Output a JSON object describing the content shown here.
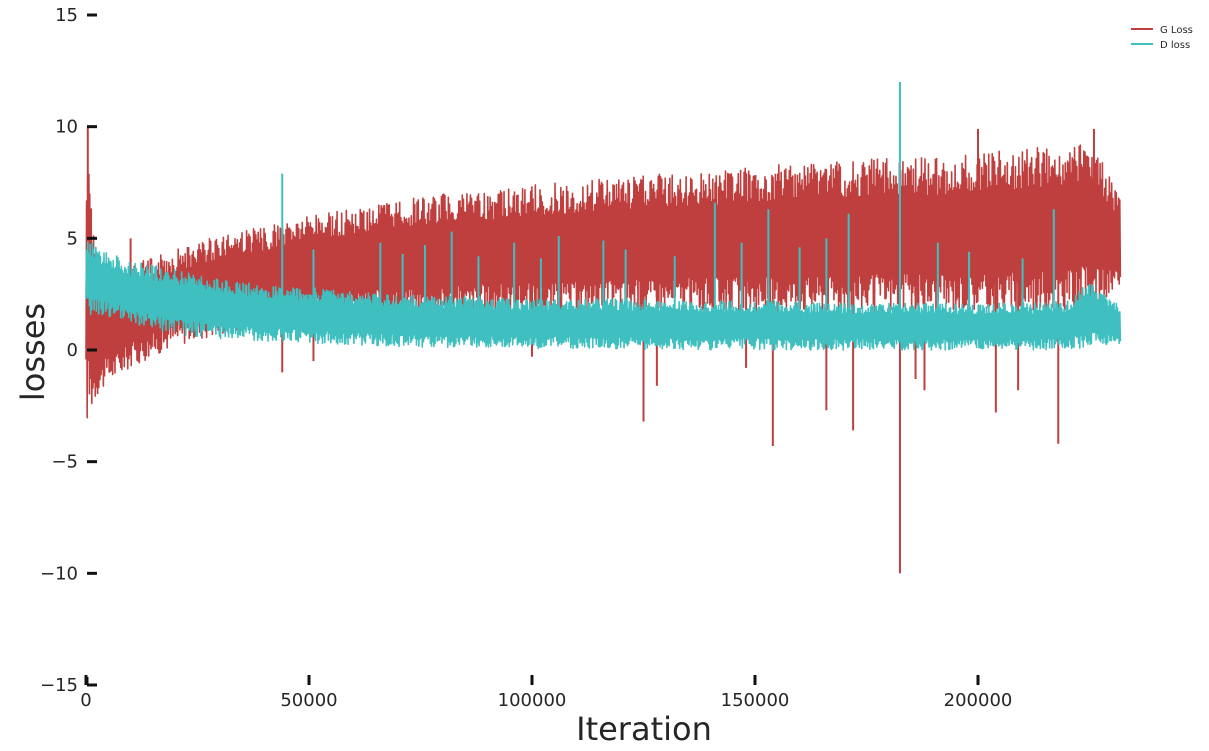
{
  "chart_data": {
    "type": "line",
    "title": "",
    "xlabel": "Iteration",
    "ylabel": "losses",
    "xlim": [
      0,
      240000
    ],
    "ylim": [
      -15,
      15
    ],
    "x_ticks": [
      0,
      50000,
      100000,
      150000,
      200000
    ],
    "y_ticks": [
      15,
      10,
      5,
      0,
      -5,
      -10,
      -15
    ],
    "x_tick_labels": [
      "0",
      "50000",
      "100000",
      "150000",
      "200000"
    ],
    "y_tick_labels": [
      "15",
      "10",
      "5",
      "0",
      "−5",
      "−10",
      "−15"
    ],
    "grid": false,
    "legend_position": "top-right",
    "series": [
      {
        "name": "G Loss",
        "color": "#bf3f3f",
        "x": [
          0,
          2500,
          5000,
          10000,
          20000,
          30000,
          40000,
          50000,
          60000,
          70000,
          80000,
          90000,
          100000,
          110000,
          120000,
          130000,
          140000,
          150000,
          160000,
          170000,
          180000,
          190000,
          200000,
          210000,
          220000,
          225000,
          232000
        ],
        "upper": [
          10,
          3.3,
          3.5,
          3.8,
          4.5,
          5.2,
          5.5,
          6.0,
          6.4,
          6.7,
          7.0,
          7.2,
          7.4,
          7.6,
          7.7,
          7.9,
          8.0,
          8.2,
          8.4,
          8.5,
          8.6,
          8.6,
          8.8,
          9.0,
          9.2,
          9.4,
          7.0
        ],
        "lower": [
          -3.4,
          -2.0,
          -1.5,
          -0.8,
          0.2,
          0.7,
          1.0,
          1.2,
          1.4,
          1.5,
          1.5,
          1.6,
          1.6,
          1.6,
          1.7,
          1.7,
          1.7,
          1.7,
          1.7,
          1.7,
          1.7,
          1.7,
          1.7,
          1.7,
          1.8,
          2.0,
          2.4
        ],
        "spikes": [
          {
            "x": 400,
            "y": 10.0
          },
          {
            "x": 800,
            "y": 7.0
          },
          {
            "x": 10000,
            "y": 5.0
          },
          {
            "x": 44000,
            "y": -1.0
          },
          {
            "x": 51000,
            "y": -0.5
          },
          {
            "x": 100000,
            "y": -0.3
          },
          {
            "x": 125000,
            "y": -3.2
          },
          {
            "x": 128000,
            "y": -1.6
          },
          {
            "x": 148000,
            "y": -0.8
          },
          {
            "x": 154000,
            "y": -4.3
          },
          {
            "x": 166000,
            "y": -2.7
          },
          {
            "x": 172000,
            "y": -3.6
          },
          {
            "x": 182500,
            "y": -10.0
          },
          {
            "x": 186000,
            "y": -1.3
          },
          {
            "x": 188000,
            "y": -1.8
          },
          {
            "x": 200000,
            "y": 9.9
          },
          {
            "x": 204000,
            "y": -2.8
          },
          {
            "x": 209000,
            "y": -1.8
          },
          {
            "x": 218000,
            "y": -4.2
          },
          {
            "x": 226000,
            "y": 9.9
          }
        ]
      },
      {
        "name": "D loss",
        "color": "#3fbfbf",
        "x": [
          0,
          2500,
          5000,
          10000,
          20000,
          30000,
          40000,
          50000,
          60000,
          70000,
          80000,
          90000,
          100000,
          110000,
          120000,
          130000,
          140000,
          150000,
          160000,
          170000,
          180000,
          190000,
          200000,
          210000,
          220000,
          225000,
          232000
        ],
        "upper": [
          5.2,
          4.6,
          4.4,
          4.0,
          3.6,
          3.2,
          2.9,
          2.8,
          2.6,
          2.5,
          2.4,
          2.4,
          2.3,
          2.3,
          2.3,
          2.2,
          2.2,
          2.2,
          2.2,
          2.1,
          2.1,
          2.1,
          2.1,
          2.1,
          2.2,
          3.2,
          2.0
        ],
        "lower": [
          1.5,
          1.6,
          1.5,
          1.1,
          0.7,
          0.5,
          0.4,
          0.3,
          0.2,
          0.15,
          0.1,
          0.1,
          0.05,
          0.05,
          0.05,
          0.02,
          0.0,
          0.0,
          0.0,
          0.0,
          0.0,
          0.0,
          0.0,
          0.0,
          0.05,
          0.1,
          0.3
        ],
        "spikes": [
          {
            "x": 44000,
            "y": 7.9
          },
          {
            "x": 51000,
            "y": 4.5
          },
          {
            "x": 66000,
            "y": 4.8
          },
          {
            "x": 71000,
            "y": 4.3
          },
          {
            "x": 76000,
            "y": 4.7
          },
          {
            "x": 82000,
            "y": 5.3
          },
          {
            "x": 88000,
            "y": 4.2
          },
          {
            "x": 96000,
            "y": 4.8
          },
          {
            "x": 102000,
            "y": 4.1
          },
          {
            "x": 106000,
            "y": 5.1
          },
          {
            "x": 116000,
            "y": 4.9
          },
          {
            "x": 121000,
            "y": 4.5
          },
          {
            "x": 132000,
            "y": 4.2
          },
          {
            "x": 141000,
            "y": 6.6
          },
          {
            "x": 147000,
            "y": 4.8
          },
          {
            "x": 153000,
            "y": 6.3
          },
          {
            "x": 160000,
            "y": 4.6
          },
          {
            "x": 166000,
            "y": 5.0
          },
          {
            "x": 171000,
            "y": 6.1
          },
          {
            "x": 182500,
            "y": 12.0
          },
          {
            "x": 191000,
            "y": 4.8
          },
          {
            "x": 198000,
            "y": 4.4
          },
          {
            "x": 210000,
            "y": 4.1
          },
          {
            "x": 217000,
            "y": 6.3
          }
        ]
      }
    ]
  }
}
